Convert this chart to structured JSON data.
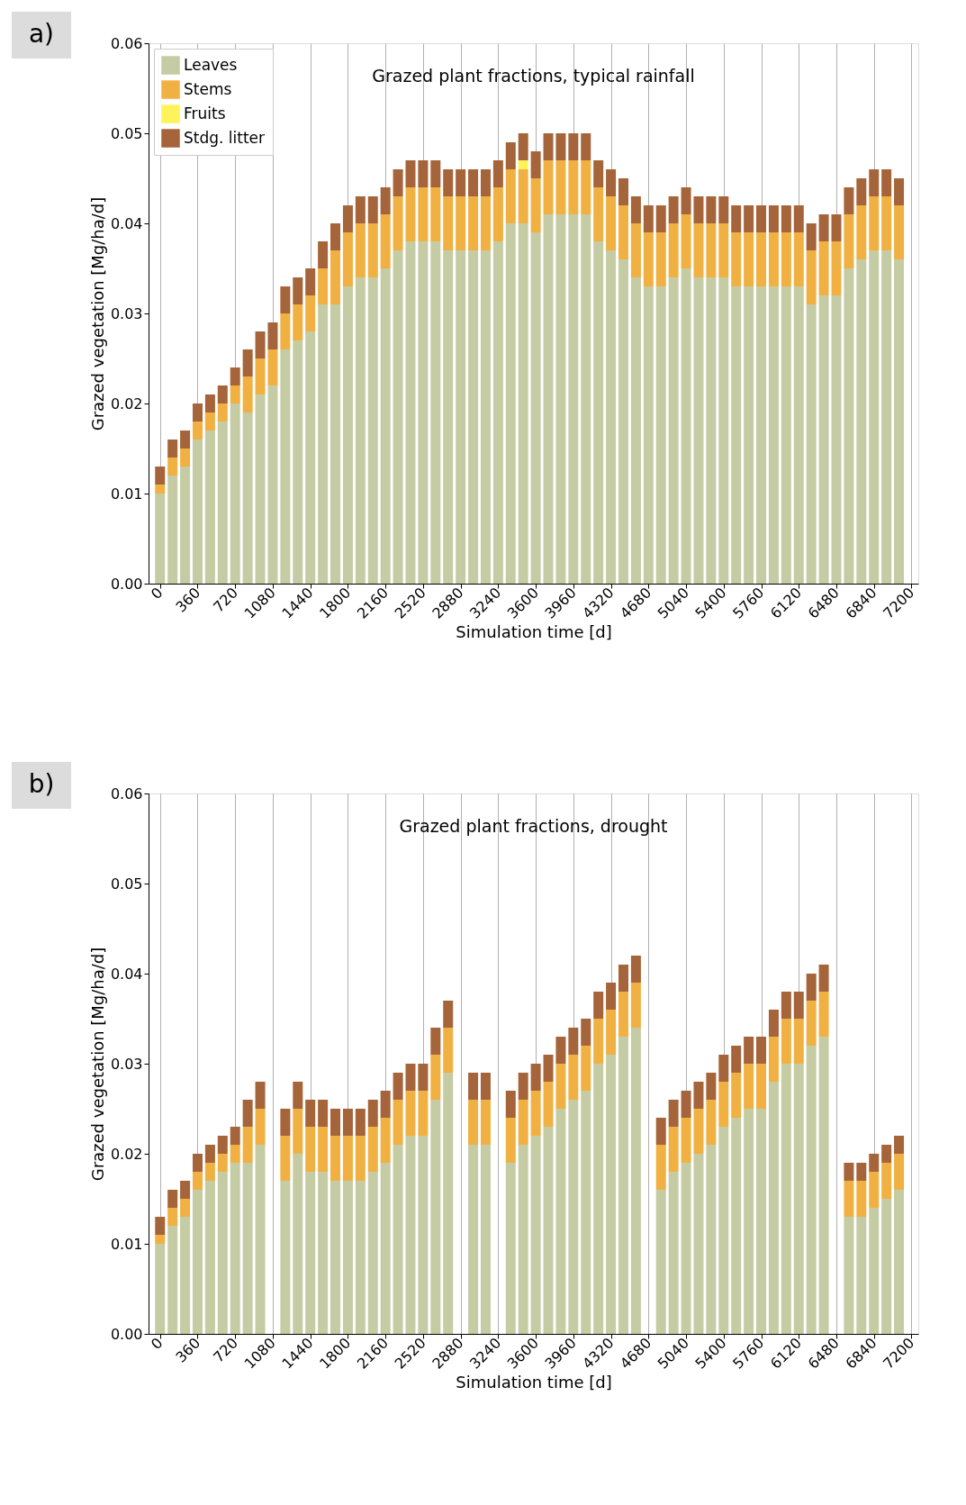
{
  "chart_data": [
    {
      "type": "bar",
      "title": "Grazed plant fractions, typical rainfall",
      "xlabel": "Simulation time [d]",
      "ylabel": "Grazed vegetation [Mg/ha/d]",
      "annotations": [
        "a)"
      ],
      "stacked": true,
      "grid": "x",
      "legend": "top left",
      "xlim": [
        -110,
        7265
      ],
      "ylim": [
        0,
        0.06
      ],
      "xticks": [
        0,
        360,
        720,
        1080,
        1440,
        1800,
        2160,
        2520,
        2880,
        3240,
        3600,
        3960,
        4320,
        4680,
        5040,
        5400,
        5760,
        6120,
        6480,
        6840,
        7200
      ],
      "yticks": [
        {
          "value": 0,
          "label": "0.00"
        },
        0.01,
        0.02,
        0.03,
        0.04,
        0.05,
        0.06
      ],
      "x": [
        0,
        120,
        240,
        360,
        480,
        600,
        720,
        840,
        960,
        1080,
        1200,
        1320,
        1440,
        1560,
        1680,
        1800,
        1920,
        2040,
        2160,
        2280,
        2400,
        2520,
        2640,
        2760,
        2880,
        3000,
        3120,
        3240,
        3360,
        3480,
        3600,
        3720,
        3840,
        3960,
        4080,
        4200,
        4320,
        4440,
        4560,
        4680,
        4800,
        4920,
        5040,
        5160,
        5280,
        5400,
        5520,
        5640,
        5760,
        5880,
        6000,
        6120,
        6240,
        6360,
        6480,
        6600,
        6720,
        6840,
        6960,
        7080
      ],
      "series": [
        {
          "name": "Leaves",
          "color": "#c5cca4",
          "values": [
            0.01,
            0.012,
            0.013,
            0.016,
            0.017,
            0.018,
            0.02,
            0.019,
            0.021,
            0.022,
            0.026,
            0.027,
            0.028,
            0.031,
            0.031,
            0.033,
            0.034,
            0.034,
            0.035,
            0.037,
            0.038,
            0.038,
            0.038,
            0.037,
            0.037,
            0.037,
            0.037,
            0.038,
            0.04,
            0.04,
            0.039,
            0.041,
            0.041,
            0.041,
            0.041,
            0.038,
            0.037,
            0.036,
            0.034,
            0.033,
            0.033,
            0.034,
            0.035,
            0.034,
            0.034,
            0.034,
            0.033,
            0.033,
            0.033,
            0.033,
            0.033,
            0.033,
            0.031,
            0.032,
            0.032,
            0.035,
            0.036,
            0.037,
            0.037,
            0.036
          ]
        },
        {
          "name": "Stems",
          "color": "#f0b142",
          "values": [
            0.001,
            0.002,
            0.002,
            0.002,
            0.002,
            0.002,
            0.002,
            0.004,
            0.004,
            0.004,
            0.004,
            0.004,
            0.004,
            0.004,
            0.006,
            0.006,
            0.006,
            0.006,
            0.006,
            0.006,
            0.006,
            0.006,
            0.006,
            0.006,
            0.006,
            0.006,
            0.006,
            0.006,
            0.006,
            0.006,
            0.006,
            0.006,
            0.006,
            0.006,
            0.006,
            0.006,
            0.006,
            0.006,
            0.006,
            0.006,
            0.006,
            0.006,
            0.006,
            0.006,
            0.006,
            0.006,
            0.006,
            0.006,
            0.006,
            0.006,
            0.006,
            0.006,
            0.006,
            0.006,
            0.006,
            0.006,
            0.006,
            0.006,
            0.006,
            0.006
          ]
        },
        {
          "name": "Fruits",
          "color": "#fff35a",
          "values": [
            0,
            0,
            0,
            0,
            0,
            0,
            0,
            0,
            0,
            0,
            0,
            0,
            0,
            0,
            0,
            0,
            0,
            0,
            0,
            0,
            0,
            0,
            0,
            0,
            0,
            0,
            0,
            0,
            0,
            0.001,
            0,
            0,
            0,
            0,
            0,
            0,
            0,
            0,
            0,
            0,
            0,
            0,
            0,
            0,
            0,
            0,
            0,
            0,
            0,
            0,
            0,
            0,
            0,
            0,
            0,
            0,
            0,
            0,
            0,
            0
          ]
        },
        {
          "name": "Stdg. litter",
          "color": "#a5643a",
          "values": [
            0.002,
            0.002,
            0.002,
            0.002,
            0.002,
            0.002,
            0.002,
            0.003,
            0.003,
            0.003,
            0.003,
            0.003,
            0.003,
            0.003,
            0.003,
            0.003,
            0.003,
            0.003,
            0.003,
            0.003,
            0.003,
            0.003,
            0.003,
            0.003,
            0.003,
            0.003,
            0.003,
            0.003,
            0.003,
            0.003,
            0.003,
            0.003,
            0.003,
            0.003,
            0.003,
            0.003,
            0.003,
            0.003,
            0.003,
            0.003,
            0.003,
            0.003,
            0.003,
            0.003,
            0.003,
            0.003,
            0.003,
            0.003,
            0.003,
            0.003,
            0.003,
            0.003,
            0.003,
            0.003,
            0.003,
            0.003,
            0.003,
            0.003,
            0.003,
            0.003
          ]
        }
      ]
    },
    {
      "type": "bar",
      "title": "Grazed plant fractions, drought",
      "xlabel": "Simulation time [d]",
      "ylabel": "Grazed vegetation [Mg/ha/d]",
      "annotations": [
        "b)"
      ],
      "stacked": true,
      "grid": "x",
      "xlim": [
        -110,
        7265
      ],
      "ylim": [
        0,
        0.06
      ],
      "xticks": [
        0,
        360,
        720,
        1080,
        1440,
        1800,
        2160,
        2520,
        2880,
        3240,
        3600,
        3960,
        4320,
        4680,
        5040,
        5400,
        5760,
        6120,
        6480,
        6840,
        7200
      ],
      "yticks": [
        {
          "value": 0,
          "label": "0.00"
        },
        0.01,
        0.02,
        0.03,
        0.04,
        0.05,
        0.06
      ],
      "x": [
        0,
        120,
        240,
        360,
        480,
        600,
        720,
        840,
        960,
        1080,
        1200,
        1320,
        1440,
        1560,
        1680,
        1800,
        1920,
        2040,
        2160,
        2280,
        2400,
        2520,
        2640,
        2760,
        2880,
        3000,
        3120,
        3240,
        3360,
        3480,
        3600,
        3720,
        3840,
        3960,
        4080,
        4200,
        4320,
        4440,
        4560,
        4680,
        4800,
        4920,
        5040,
        5160,
        5280,
        5400,
        5520,
        5640,
        5760,
        5880,
        6000,
        6120,
        6240,
        6360,
        6480,
        6600,
        6720,
        6840,
        6960,
        7080
      ],
      "series": [
        {
          "name": "Leaves",
          "color": "#c5cca4",
          "values": [
            0.01,
            0.012,
            0.013,
            0.016,
            0.017,
            0.018,
            0.019,
            0.019,
            0.021,
            0,
            0.017,
            0.02,
            0.018,
            0.018,
            0.017,
            0.017,
            0.017,
            0.018,
            0.019,
            0.021,
            0.022,
            0.022,
            0.026,
            0.029,
            0,
            0.021,
            0.021,
            0,
            0.019,
            0.021,
            0.022,
            0.023,
            0.025,
            0.026,
            0.027,
            0.03,
            0.031,
            0.033,
            0.034,
            0,
            0.016,
            0.018,
            0.019,
            0.02,
            0.021,
            0.023,
            0.024,
            0.025,
            0.025,
            0.028,
            0.03,
            0.03,
            0.032,
            0.033,
            0,
            0.013,
            0.013,
            0.014,
            0.015,
            0.016
          ]
        },
        {
          "name": "Stems",
          "color": "#f0b142",
          "values": [
            0.001,
            0.002,
            0.002,
            0.002,
            0.002,
            0.002,
            0.002,
            0.004,
            0.004,
            0,
            0.005,
            0.005,
            0.005,
            0.005,
            0.005,
            0.005,
            0.005,
            0.005,
            0.005,
            0.005,
            0.005,
            0.005,
            0.005,
            0.005,
            0,
            0.005,
            0.005,
            0,
            0.005,
            0.005,
            0.005,
            0.005,
            0.005,
            0.005,
            0.005,
            0.005,
            0.005,
            0.005,
            0.005,
            0,
            0.005,
            0.005,
            0.005,
            0.005,
            0.005,
            0.005,
            0.005,
            0.005,
            0.005,
            0.005,
            0.005,
            0.005,
            0.005,
            0.005,
            0,
            0.004,
            0.004,
            0.004,
            0.004,
            0.004
          ]
        },
        {
          "name": "Fruits",
          "color": "#fff35a",
          "values": [
            0,
            0,
            0,
            0,
            0,
            0,
            0,
            0,
            0,
            0,
            0,
            0,
            0,
            0,
            0,
            0,
            0,
            0,
            0,
            0,
            0,
            0,
            0,
            0,
            0,
            0,
            0,
            0,
            0,
            0,
            0,
            0,
            0,
            0,
            0,
            0,
            0,
            0,
            0,
            0,
            0,
            0,
            0,
            0,
            0,
            0,
            0,
            0,
            0,
            0,
            0,
            0,
            0,
            0,
            0,
            0,
            0,
            0,
            0,
            0
          ]
        },
        {
          "name": "Stdg. litter",
          "color": "#a5643a",
          "values": [
            0.002,
            0.002,
            0.002,
            0.002,
            0.002,
            0.002,
            0.002,
            0.003,
            0.003,
            0,
            0.003,
            0.003,
            0.003,
            0.003,
            0.003,
            0.003,
            0.003,
            0.003,
            0.003,
            0.003,
            0.003,
            0.003,
            0.003,
            0.003,
            0,
            0.003,
            0.003,
            0,
            0.003,
            0.003,
            0.003,
            0.003,
            0.003,
            0.003,
            0.003,
            0.003,
            0.003,
            0.003,
            0.003,
            0,
            0.003,
            0.003,
            0.003,
            0.003,
            0.003,
            0.003,
            0.003,
            0.003,
            0.003,
            0.003,
            0.003,
            0.003,
            0.003,
            0.003,
            0,
            0.002,
            0.002,
            0.002,
            0.002,
            0.002
          ]
        }
      ]
    }
  ]
}
